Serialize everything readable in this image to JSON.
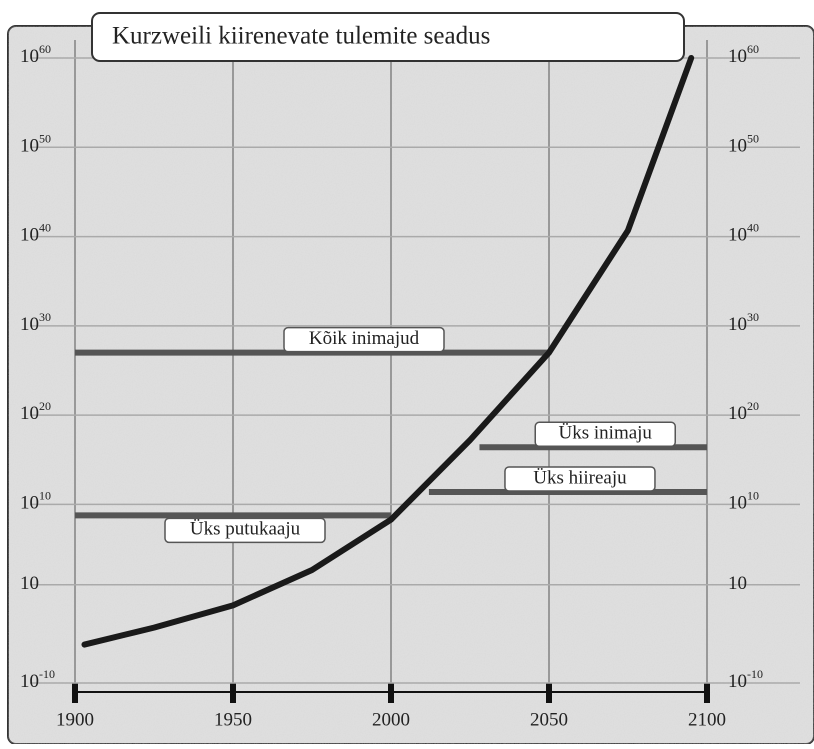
{
  "chart_data": {
    "type": "line",
    "title": "Kurzweili kiirenevate tulemite seadus",
    "log_y": true,
    "x": [
      1903,
      1925,
      1950,
      1975,
      2000,
      2025,
      2050,
      2075,
      2095
    ],
    "series": [
      {
        "color": "#1a1a1a",
        "values": [
          2e-06,
          0.00016,
          0.05,
          450,
          200000000.0,
          1.6e+17,
          1e+27,
          5e+40,
          1e+60
        ]
      }
    ],
    "levels": [
      {
        "label": "Kõik inimajud",
        "value": 1e+27,
        "from": 1900,
        "to": 2050
      },
      {
        "label": "Üks inimaju",
        "value": 2.5e+16,
        "from": 2028,
        "to": 2100
      },
      {
        "label": "Üks hiireaju",
        "value": 250000000000.0,
        "from": 2012,
        "to": 2100
      },
      {
        "label": "Üks putukaaju",
        "value": 600000000.0,
        "from": 1900,
        "to": 2000
      }
    ],
    "level_color": "#555555",
    "xlim": [
      1900,
      2100
    ],
    "xticks": [
      1900,
      1950,
      2000,
      2050,
      2100
    ],
    "ylim": [
      1e-10,
      1e+60
    ],
    "yticks": [
      {
        "value": 1e-10,
        "label": "10",
        "exponent": "-10"
      },
      {
        "value": 10,
        "label": "10"
      },
      {
        "value": 10000000000.0,
        "label": "10",
        "exponent": "10"
      },
      {
        "value": 1e+20,
        "label": "10",
        "exponent": "20"
      },
      {
        "value": 1e+30,
        "label": "10",
        "exponent": "30"
      },
      {
        "value": 1e+40,
        "label": "10",
        "exponent": "40"
      },
      {
        "value": 1e+50,
        "label": "10",
        "exponent": "50"
      },
      {
        "value": 1e+60,
        "label": "10",
        "exponent": "60"
      }
    ],
    "grid": true
  }
}
